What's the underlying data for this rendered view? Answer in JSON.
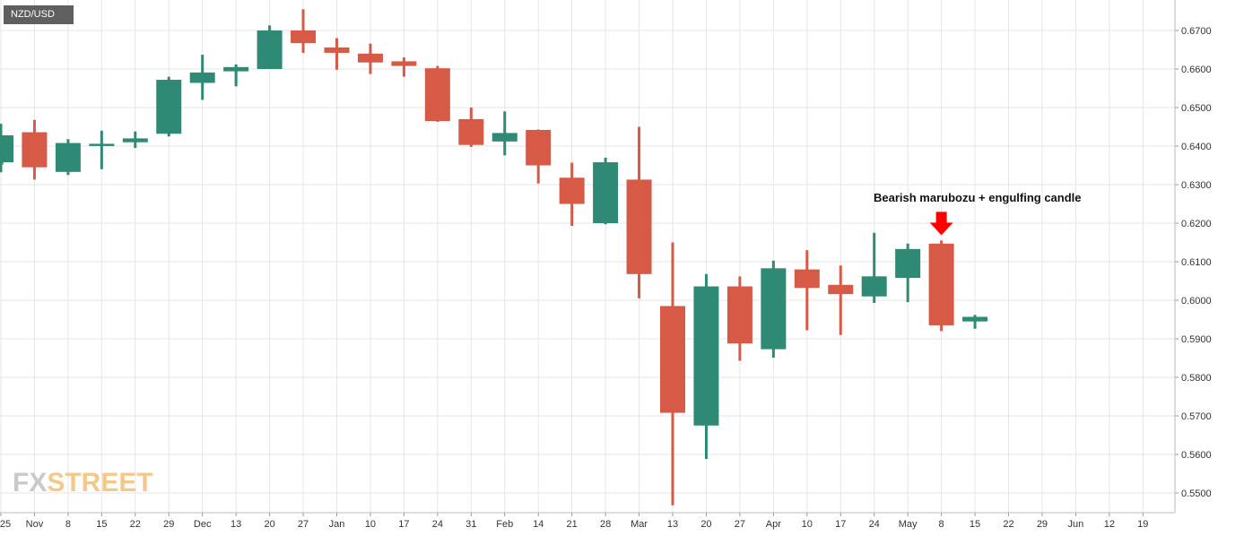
{
  "symbol": "NZD/USD",
  "logo": {
    "part1": "FX",
    "part2": "STREET"
  },
  "annotation": {
    "text": "Bearish marubozu + engulfing candle",
    "arrow_color": "#ff0000"
  },
  "colors": {
    "up": "#2e8a74",
    "down": "#d65a46",
    "grid": "#e6e6e6",
    "axis_text": "#333333"
  },
  "chart_data": {
    "type": "candlestick",
    "title": "",
    "xlabel": "",
    "ylabel": "",
    "ylim": [
      0.545,
      0.6765
    ],
    "y_ticks": [
      0.55,
      0.56,
      0.57,
      0.58,
      0.59,
      0.6,
      0.61,
      0.62,
      0.63,
      0.64,
      0.65,
      0.66,
      0.67
    ],
    "y_tick_labels": [
      "0.5500",
      "0.5600",
      "0.5700",
      "0.5800",
      "0.5900",
      "0.6000",
      "0.6100",
      "0.6200",
      "0.6300",
      "0.6400",
      "0.6500",
      "0.6600",
      "0.6700"
    ],
    "grid": true,
    "x_ticks": [
      {
        "label": "25",
        "index": 0
      },
      {
        "label": "Nov",
        "index": 1
      },
      {
        "label": "8",
        "index": 2
      },
      {
        "label": "15",
        "index": 3
      },
      {
        "label": "22",
        "index": 4
      },
      {
        "label": "29",
        "index": 5
      },
      {
        "label": "Dec",
        "index": 6
      },
      {
        "label": "13",
        "index": 7
      },
      {
        "label": "20",
        "index": 8
      },
      {
        "label": "27",
        "index": 9
      },
      {
        "label": "Jan",
        "index": 10
      },
      {
        "label": "10",
        "index": 11
      },
      {
        "label": "17",
        "index": 12
      },
      {
        "label": "24",
        "index": 13
      },
      {
        "label": "31",
        "index": 14
      },
      {
        "label": "Feb",
        "index": 15
      },
      {
        "label": "14",
        "index": 16
      },
      {
        "label": "21",
        "index": 17
      },
      {
        "label": "28",
        "index": 18
      },
      {
        "label": "Mar",
        "index": 19
      },
      {
        "label": "13",
        "index": 20
      },
      {
        "label": "20",
        "index": 21
      },
      {
        "label": "27",
        "index": 22
      },
      {
        "label": "Apr",
        "index": 23
      },
      {
        "label": "10",
        "index": 24
      },
      {
        "label": "17",
        "index": 25
      },
      {
        "label": "24",
        "index": 26
      },
      {
        "label": "May",
        "index": 27
      },
      {
        "label": "8",
        "index": 28
      },
      {
        "label": "15",
        "index": 29
      },
      {
        "label": "22",
        "index": 30
      },
      {
        "label": "29",
        "index": 31
      },
      {
        "label": "Jun",
        "index": 32
      },
      {
        "label": "12",
        "index": 33
      },
      {
        "label": "19",
        "index": 34
      }
    ],
    "candles": [
      {
        "index": -0.3,
        "open": 0.6385,
        "high": 0.644,
        "low": 0.635,
        "close": 0.6352
      },
      {
        "index": 0,
        "open": 0.6358,
        "high": 0.6458,
        "low": 0.6332,
        "close": 0.6428
      },
      {
        "index": 1,
        "open": 0.6436,
        "high": 0.6468,
        "low": 0.6313,
        "close": 0.6345
      },
      {
        "index": 2,
        "open": 0.6333,
        "high": 0.6418,
        "low": 0.6325,
        "close": 0.6408
      },
      {
        "index": 3,
        "open": 0.6403,
        "high": 0.644,
        "low": 0.634,
        "close": 0.6406
      },
      {
        "index": 4,
        "open": 0.641,
        "high": 0.6438,
        "low": 0.6395,
        "close": 0.642
      },
      {
        "index": 5,
        "open": 0.6432,
        "high": 0.658,
        "low": 0.6425,
        "close": 0.6572
      },
      {
        "index": 6,
        "open": 0.6564,
        "high": 0.6637,
        "low": 0.652,
        "close": 0.6591
      },
      {
        "index": 7,
        "open": 0.6594,
        "high": 0.6612,
        "low": 0.6555,
        "close": 0.6605
      },
      {
        "index": 8,
        "open": 0.66,
        "high": 0.6713,
        "low": 0.66,
        "close": 0.67
      },
      {
        "index": 9,
        "open": 0.67,
        "high": 0.6755,
        "low": 0.6642,
        "close": 0.6667
      },
      {
        "index": 10,
        "open": 0.6656,
        "high": 0.668,
        "low": 0.6598,
        "close": 0.6642
      },
      {
        "index": 11,
        "open": 0.664,
        "high": 0.6666,
        "low": 0.6587,
        "close": 0.6617
      },
      {
        "index": 12,
        "open": 0.662,
        "high": 0.663,
        "low": 0.658,
        "close": 0.6608
      },
      {
        "index": 13,
        "open": 0.6602,
        "high": 0.6608,
        "low": 0.6463,
        "close": 0.6465
      },
      {
        "index": 14,
        "open": 0.647,
        "high": 0.65,
        "low": 0.6398,
        "close": 0.6403
      },
      {
        "index": 15,
        "open": 0.6412,
        "high": 0.649,
        "low": 0.6376,
        "close": 0.6434
      },
      {
        "index": 16,
        "open": 0.6442,
        "high": 0.6443,
        "low": 0.6303,
        "close": 0.635
      },
      {
        "index": 17,
        "open": 0.6318,
        "high": 0.6357,
        "low": 0.6193,
        "close": 0.625
      },
      {
        "index": 18,
        "open": 0.62,
        "high": 0.637,
        "low": 0.6197,
        "close": 0.6358
      },
      {
        "index": 19,
        "open": 0.6313,
        "high": 0.645,
        "low": 0.6005,
        "close": 0.6068
      },
      {
        "index": 20,
        "open": 0.5985,
        "high": 0.615,
        "low": 0.5468,
        "close": 0.5708
      },
      {
        "index": 21,
        "open": 0.5675,
        "high": 0.6068,
        "low": 0.5588,
        "close": 0.6036
      },
      {
        "index": 22,
        "open": 0.6036,
        "high": 0.6062,
        "low": 0.5843,
        "close": 0.5888
      },
      {
        "index": 23,
        "open": 0.5873,
        "high": 0.6103,
        "low": 0.5851,
        "close": 0.6083
      },
      {
        "index": 24,
        "open": 0.608,
        "high": 0.613,
        "low": 0.5922,
        "close": 0.6032
      },
      {
        "index": 25,
        "open": 0.604,
        "high": 0.609,
        "low": 0.591,
        "close": 0.6016
      },
      {
        "index": 26,
        "open": 0.601,
        "high": 0.6175,
        "low": 0.5993,
        "close": 0.6062
      },
      {
        "index": 27,
        "open": 0.6058,
        "high": 0.6147,
        "low": 0.5995,
        "close": 0.6133
      },
      {
        "index": 28,
        "open": 0.6147,
        "high": 0.6155,
        "low": 0.592,
        "close": 0.5935
      },
      {
        "index": 29,
        "open": 0.5945,
        "high": 0.5962,
        "low": 0.5926,
        "close": 0.5957
      }
    ]
  }
}
